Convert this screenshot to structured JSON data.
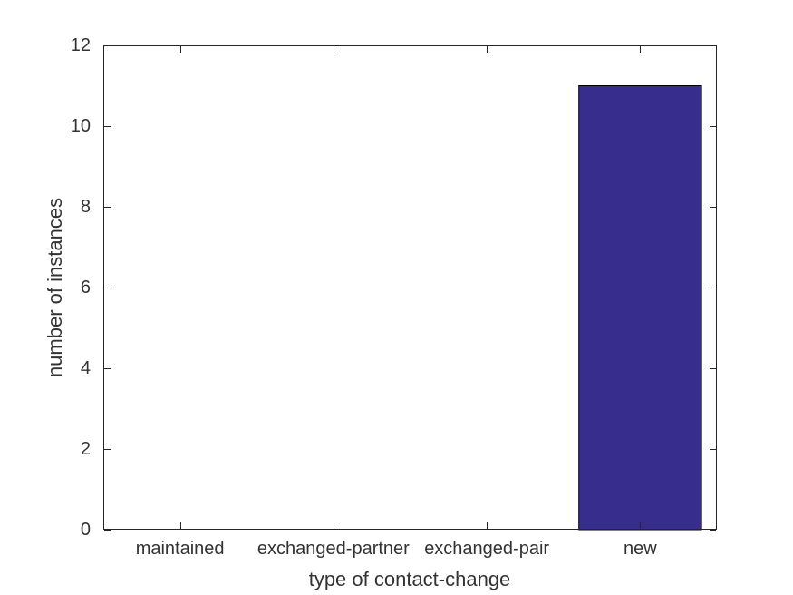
{
  "chart_data": {
    "type": "bar",
    "title": "",
    "categories": [
      "maintained",
      "exchanged-partner",
      "exchanged-pair",
      "new"
    ],
    "values": [
      0,
      0,
      0,
      11
    ],
    "xlabel": "type of contact-change",
    "ylabel": "number of instances",
    "ylim": [
      0,
      12
    ],
    "yticks": [
      0,
      2,
      4,
      6,
      8,
      10,
      12
    ],
    "grid": "off",
    "legend": "none",
    "box": true,
    "tick_direction": "in",
    "bar_width_fraction": 0.8,
    "bar_color": "#362D8C",
    "bar_edge_color": "#000000",
    "axis_color": "#262626",
    "text_color": "#333333",
    "background": "#FFFFFF"
  }
}
